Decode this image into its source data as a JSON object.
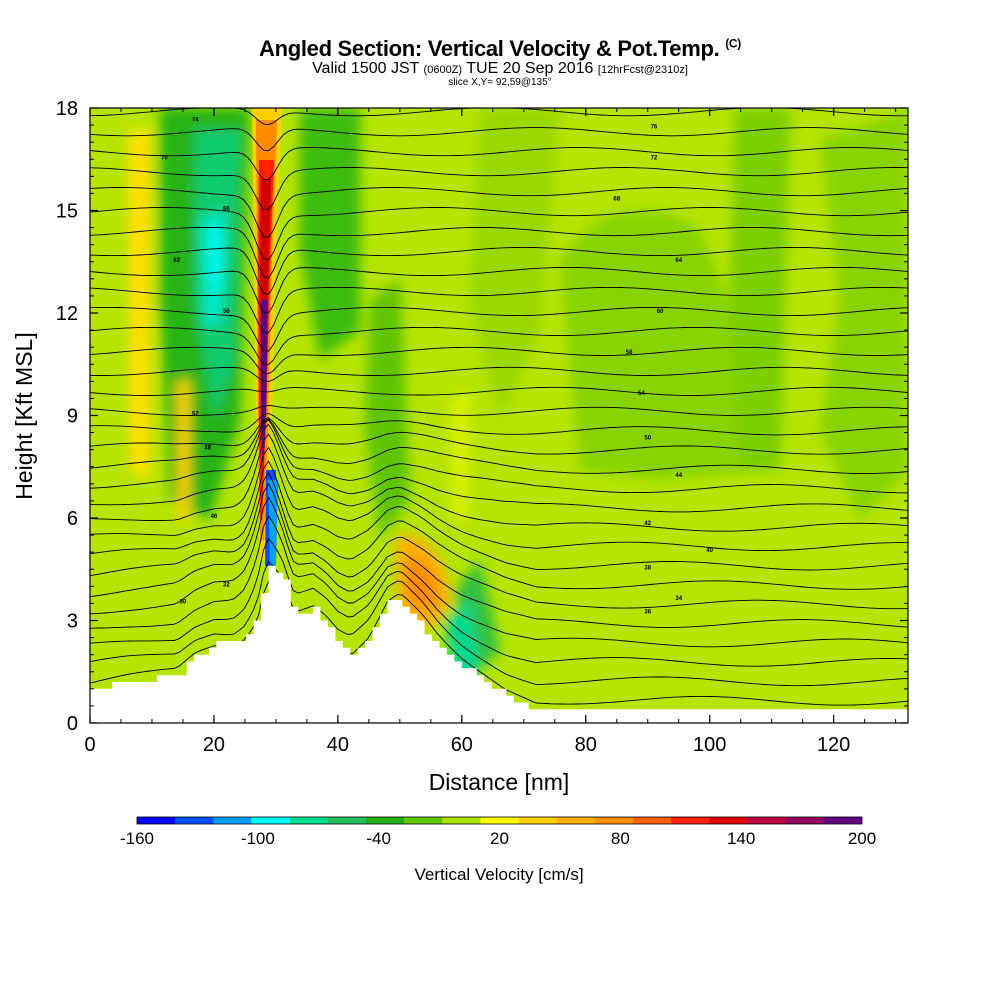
{
  "title": {
    "main": "Angled Section: Vertical Velocity & Pot.Temp.",
    "main_unit": "(C)",
    "valid_prefix": "Valid 1500 JST",
    "valid_utc": "(0600Z)",
    "valid_date": "TUE 20 Sep 2016",
    "forecast": "[12hrFcst@2310z]",
    "slice": "slice X,Y= 92,59@135°"
  },
  "chart_data": {
    "type": "heatmap",
    "xlabel": "Distance [nm]",
    "ylabel": "Height [Kft MSL]",
    "xlim": [
      0,
      132
    ],
    "ylim": [
      0,
      18
    ],
    "xticks": [
      0,
      20,
      40,
      60,
      80,
      100,
      120
    ],
    "yticks": [
      0,
      3,
      6,
      9,
      12,
      15,
      18
    ],
    "xtick_labels": [
      "0",
      "20",
      "40",
      "60",
      "80",
      "100",
      "120"
    ],
    "ytick_labels": [
      "0",
      "3",
      "6",
      "9",
      "12",
      "15",
      "18"
    ],
    "colorbar": {
      "label": "Vertical Velocity [cm/s]",
      "min": -160,
      "max": 200,
      "step": 20,
      "tick_values": [
        -160,
        -100,
        -40,
        20,
        80,
        140,
        200
      ],
      "tick_labels": [
        "-160",
        "-100",
        "-40",
        "20",
        "80",
        "140",
        "200"
      ],
      "colors": [
        "#0000ff",
        "#0050ff",
        "#00a0ff",
        "#00ffff",
        "#00e090",
        "#20c060",
        "#20b010",
        "#60c800",
        "#a8e000",
        "#ffff00",
        "#ffd000",
        "#ffb000",
        "#ff9000",
        "#ff6000",
        "#ff2000",
        "#e00000",
        "#c00040",
        "#900060",
        "#600080"
      ]
    },
    "terrain_kft": [
      {
        "x": 0,
        "y": 1.0
      },
      {
        "x": 6,
        "y": 1.2
      },
      {
        "x": 10,
        "y": 1.3
      },
      {
        "x": 14,
        "y": 1.4
      },
      {
        "x": 17,
        "y": 2.0
      },
      {
        "x": 20,
        "y": 2.3
      },
      {
        "x": 23,
        "y": 2.3
      },
      {
        "x": 25,
        "y": 2.6
      },
      {
        "x": 27,
        "y": 3.2
      },
      {
        "x": 28.5,
        "y": 4.6
      },
      {
        "x": 31,
        "y": 4.3
      },
      {
        "x": 33,
        "y": 3.1
      },
      {
        "x": 36,
        "y": 3.3
      },
      {
        "x": 38,
        "y": 2.9
      },
      {
        "x": 40,
        "y": 2.3
      },
      {
        "x": 42,
        "y": 2.0
      },
      {
        "x": 45,
        "y": 2.5
      },
      {
        "x": 48,
        "y": 3.5
      },
      {
        "x": 50,
        "y": 3.6
      },
      {
        "x": 52,
        "y": 3.1
      },
      {
        "x": 56,
        "y": 2.3
      },
      {
        "x": 60,
        "y": 1.7
      },
      {
        "x": 64,
        "y": 1.2
      },
      {
        "x": 67,
        "y": 0.8
      },
      {
        "x": 72,
        "y": 0.4
      },
      {
        "x": 132,
        "y": 0.35
      }
    ],
    "theta_levels_C": [
      30,
      32,
      34,
      36,
      38,
      40,
      42,
      44,
      46,
      48,
      50,
      52,
      54,
      56,
      58,
      60,
      62,
      64,
      66,
      68,
      70,
      72,
      74,
      76,
      78,
      80,
      82,
      84,
      86,
      88,
      90
    ],
    "theta_contour_labels": [
      {
        "x": 15,
        "y": 3.5,
        "text": "30"
      },
      {
        "x": 22,
        "y": 4.0,
        "text": "32"
      },
      {
        "x": 90,
        "y": 3.2,
        "text": "36"
      },
      {
        "x": 95,
        "y": 3.6,
        "text": "34"
      },
      {
        "x": 90,
        "y": 4.5,
        "text": "38"
      },
      {
        "x": 100,
        "y": 5.0,
        "text": "40"
      },
      {
        "x": 90,
        "y": 5.8,
        "text": "42"
      },
      {
        "x": 95,
        "y": 7.2,
        "text": "44"
      },
      {
        "x": 20,
        "y": 6.0,
        "text": "46"
      },
      {
        "x": 19,
        "y": 8.0,
        "text": "48"
      },
      {
        "x": 90,
        "y": 8.3,
        "text": "50"
      },
      {
        "x": 17,
        "y": 9.0,
        "text": "52"
      },
      {
        "x": 89,
        "y": 9.6,
        "text": "54"
      },
      {
        "x": 22,
        "y": 12.0,
        "text": "56"
      },
      {
        "x": 87,
        "y": 10.8,
        "text": "58"
      },
      {
        "x": 92,
        "y": 12.0,
        "text": "60"
      },
      {
        "x": 14,
        "y": 13.5,
        "text": "62"
      },
      {
        "x": 95,
        "y": 13.5,
        "text": "64"
      },
      {
        "x": 22,
        "y": 15.0,
        "text": "66"
      },
      {
        "x": 85,
        "y": 15.3,
        "text": "68"
      },
      {
        "x": 12,
        "y": 16.5,
        "text": "70"
      },
      {
        "x": 91,
        "y": 16.5,
        "text": "72"
      },
      {
        "x": 17,
        "y": 17.6,
        "text": "74"
      },
      {
        "x": 91,
        "y": 17.4,
        "text": "76"
      }
    ]
  }
}
